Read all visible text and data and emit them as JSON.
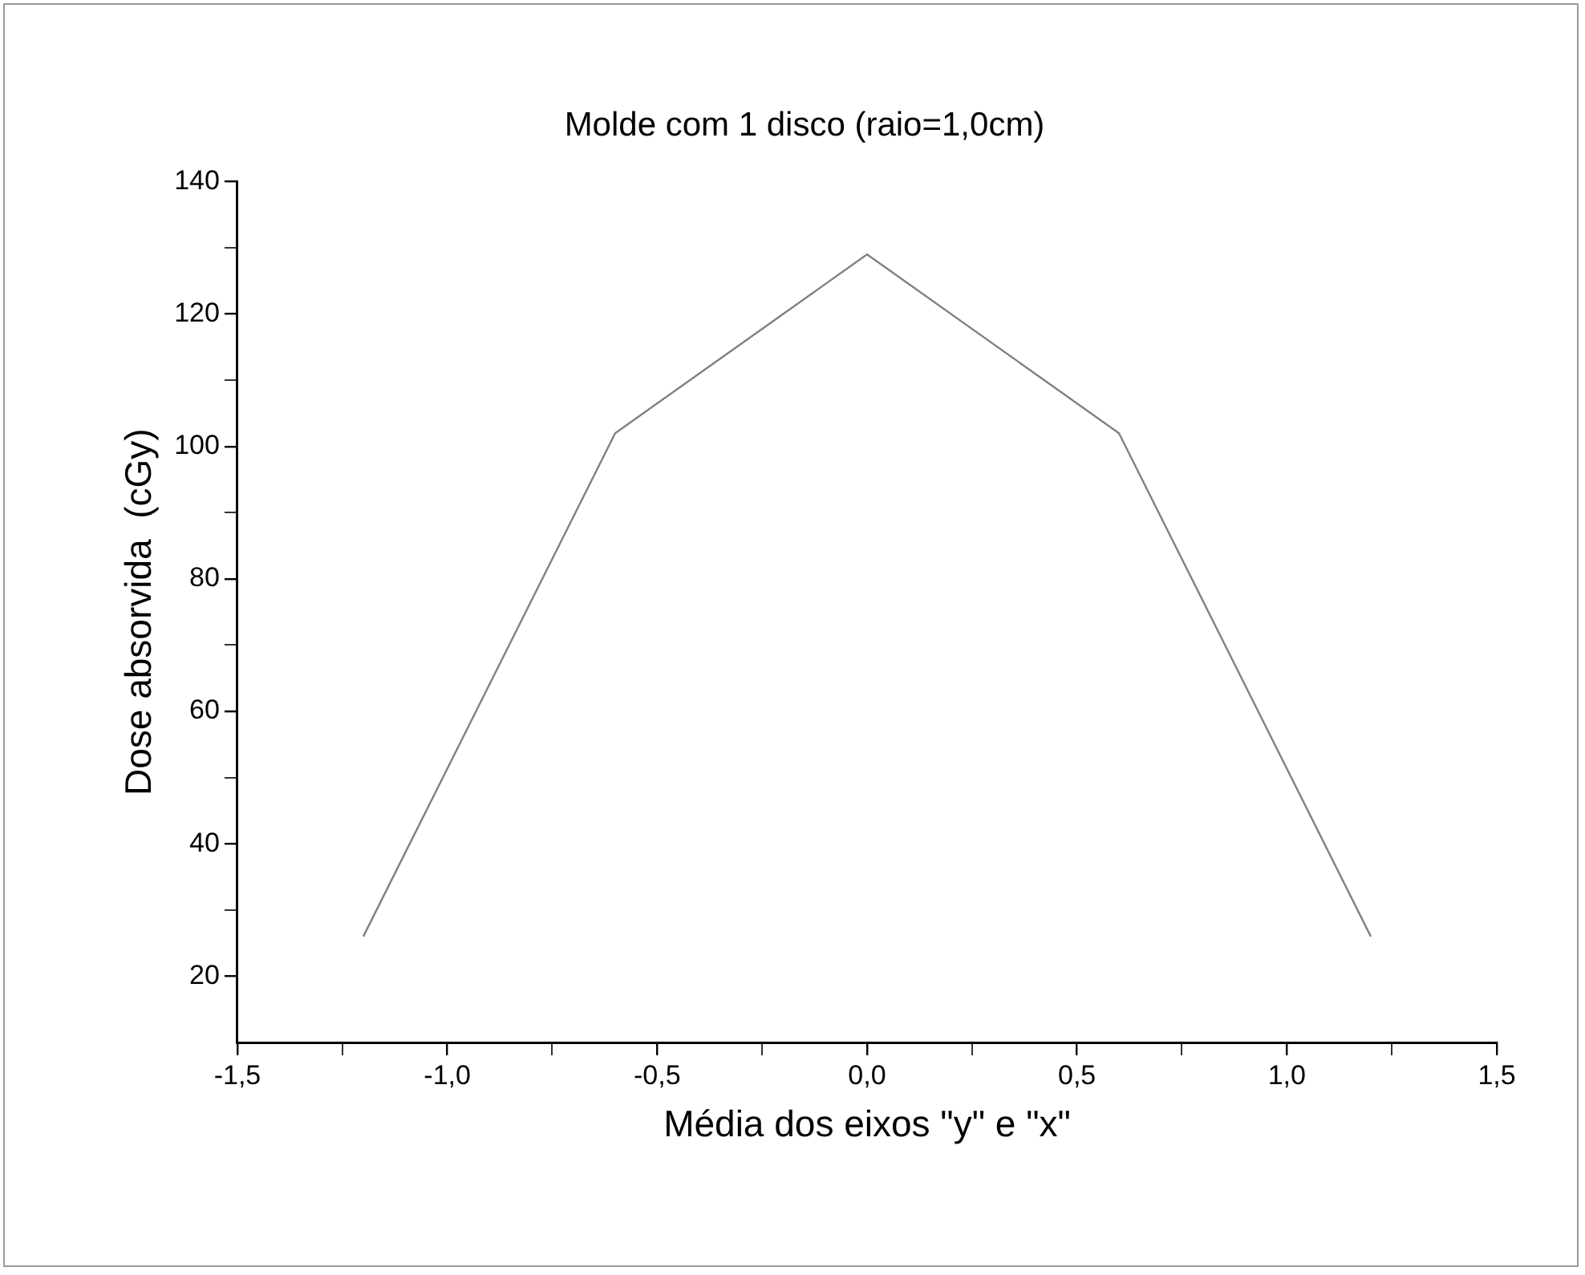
{
  "chart_data": {
    "type": "line",
    "title": "Molde com 1 disco (raio=1,0cm)",
    "xlabel": "Média dos eixos \"y\" e \"x\"",
    "ylabel": "Dose absorvida  (cGy)",
    "x": [
      -1.2,
      -0.6,
      0,
      0.6,
      1.2
    ],
    "series": [
      {
        "color": "#808080",
        "values": [
          26,
          102,
          129,
          102,
          26
        ]
      }
    ],
    "xlim": [
      -1.5,
      1.5
    ],
    "xticks": [
      {
        "value": -1.5,
        "label": "-1,5"
      },
      {
        "value": -1.25,
        "label": null
      },
      {
        "value": -1,
        "label": "-1,0"
      },
      {
        "value": -0.75,
        "label": null
      },
      {
        "value": -0.5,
        "label": "-0,5"
      },
      {
        "value": -0.25,
        "label": null
      },
      {
        "value": 0,
        "label": "0,0"
      },
      {
        "value": 0.25,
        "label": null
      },
      {
        "value": 0.5,
        "label": "0,5"
      },
      {
        "value": 0.75,
        "label": null
      },
      {
        "value": 1,
        "label": "1,0"
      },
      {
        "value": 1.25,
        "label": null
      },
      {
        "value": 1.5,
        "label": "1,5"
      }
    ],
    "ylim": [
      10,
      140
    ],
    "yticks": [
      20,
      {
        "value": 30,
        "label": null
      },
      40,
      {
        "value": 50,
        "label": null
      },
      60,
      {
        "value": 70,
        "label": null
      },
      80,
      {
        "value": 90,
        "label": null
      },
      100,
      {
        "value": 110,
        "label": null
      },
      120,
      {
        "value": 130,
        "label": null
      },
      140
    ],
    "grid": false,
    "legend": false,
    "marker": "none",
    "line_style": "solid"
  }
}
